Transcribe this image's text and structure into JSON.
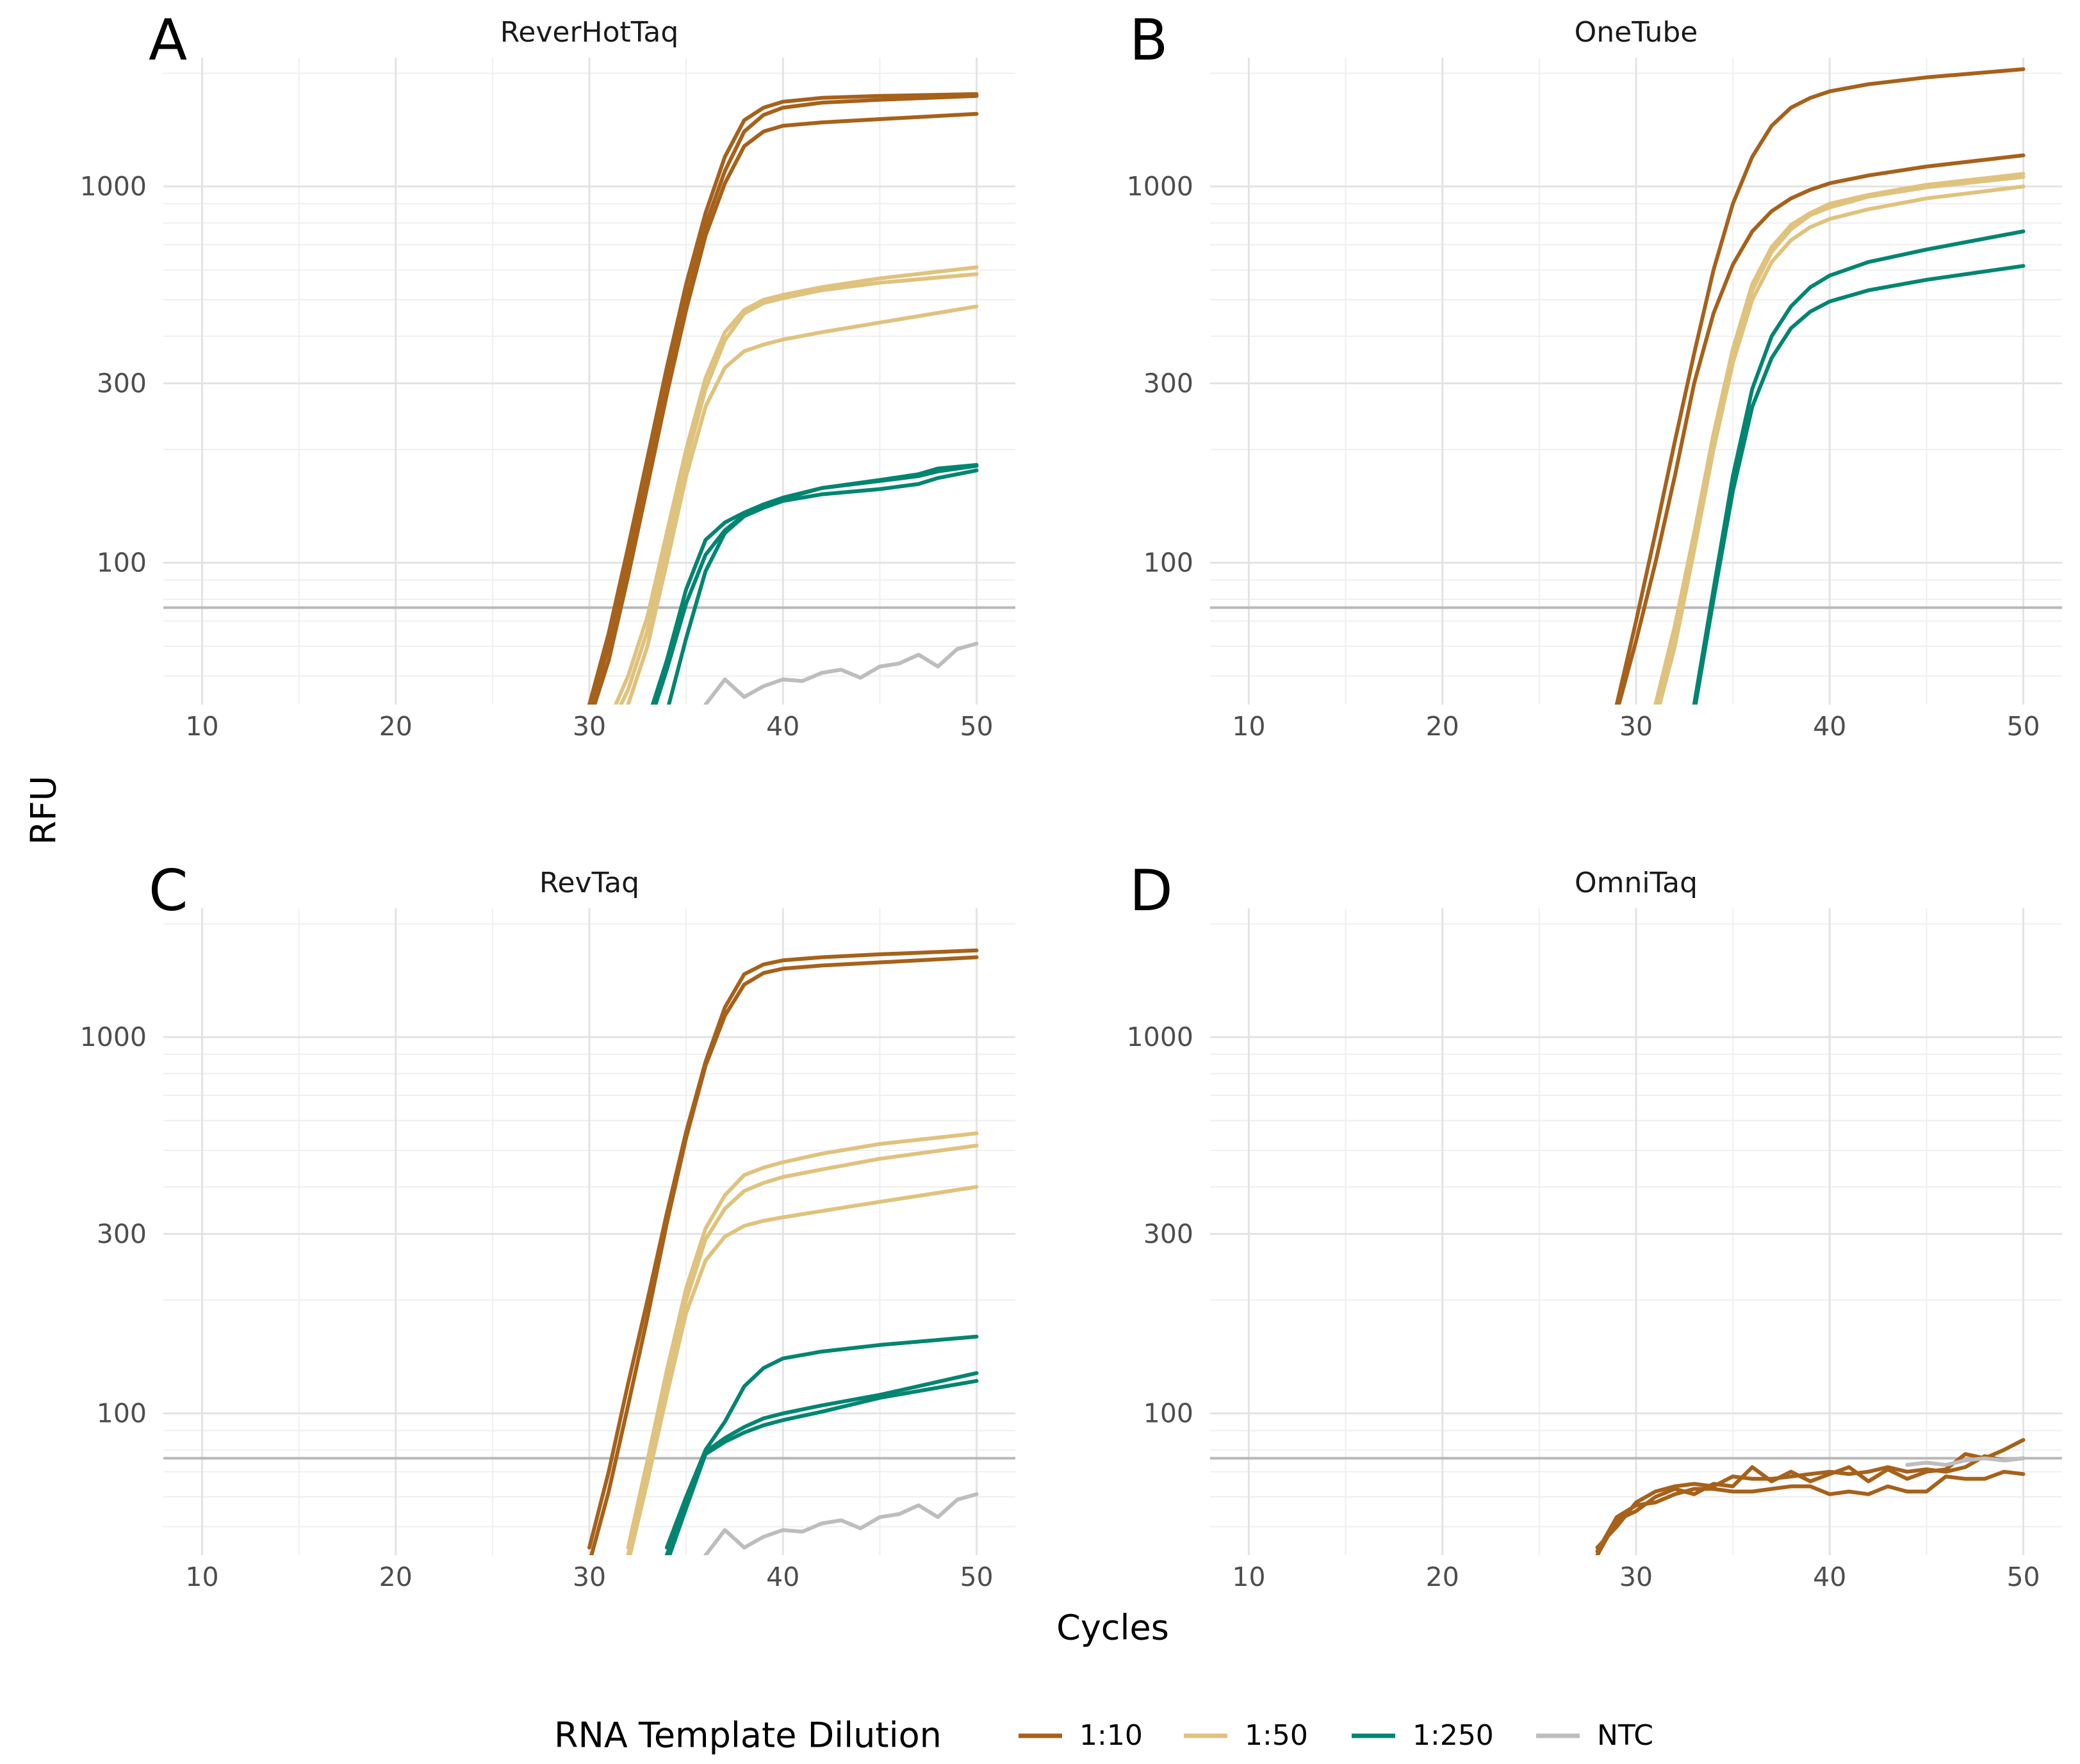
{
  "figure": {
    "y_axis_label": "RFU",
    "x_axis_label": "Cycles",
    "x_ticks": [
      10,
      20,
      30,
      40,
      50
    ],
    "y_ticks": [
      100,
      300,
      1000
    ],
    "y_tick_labels": [
      "100",
      "300",
      "1000"
    ],
    "threshold": 76,
    "legend": {
      "title": "RNA Template Dilution",
      "entries": [
        {
          "label": "1:10",
          "color": "#A6611A"
        },
        {
          "label": "1:50",
          "color": "#DFC27D"
        },
        {
          "label": "1:250",
          "color": "#018571"
        },
        {
          "label": "NTC",
          "color": "#BDBDBD"
        }
      ]
    }
  },
  "chart_data": [
    {
      "type": "line",
      "tag": "A",
      "title": "ReverHotTaq",
      "xlabel": "Cycles",
      "ylabel": "RFU",
      "yscale": "log10",
      "xlim": [
        8,
        52
      ],
      "ylim": [
        42,
        2200
      ],
      "threshold": 76,
      "series": [
        {
          "name": "1:10",
          "x": [
            30,
            31,
            32,
            33,
            34,
            35,
            36,
            37,
            38,
            39,
            40,
            42,
            45,
            50
          ],
          "y": [
            42,
            65,
            110,
            190,
            330,
            550,
            850,
            1200,
            1500,
            1620,
            1680,
            1720,
            1740,
            1760
          ]
        },
        {
          "name": "1:10",
          "x": [
            30,
            31,
            32,
            33,
            34,
            35,
            36,
            37,
            38,
            39,
            40,
            42,
            45,
            50
          ],
          "y": [
            40,
            60,
            100,
            170,
            300,
            500,
            790,
            1100,
            1400,
            1550,
            1620,
            1670,
            1700,
            1740
          ]
        },
        {
          "name": "1:10",
          "x": [
            30,
            31,
            32,
            33,
            34,
            35,
            36,
            37,
            38,
            39,
            40,
            42,
            45,
            50
          ],
          "y": [
            38,
            55,
            92,
            160,
            280,
            470,
            740,
            1020,
            1280,
            1400,
            1450,
            1480,
            1510,
            1560
          ]
        },
        {
          "name": "1:50",
          "x": [
            31,
            32,
            33,
            34,
            35,
            36,
            37,
            38,
            39,
            40,
            42,
            45,
            50
          ],
          "y": [
            38,
            50,
            72,
            120,
            200,
            310,
            410,
            470,
            500,
            515,
            540,
            570,
            610
          ]
        },
        {
          "name": "1:50",
          "x": [
            31,
            32,
            33,
            34,
            35,
            36,
            37,
            38,
            39,
            40,
            42,
            45,
            50
          ],
          "y": [
            36,
            46,
            66,
            110,
            185,
            290,
            390,
            460,
            490,
            505,
            530,
            555,
            585
          ]
        },
        {
          "name": "1:50",
          "x": [
            32,
            33,
            34,
            35,
            36,
            37,
            38,
            39,
            40,
            42,
            45,
            50
          ],
          "y": [
            42,
            60,
            100,
            170,
            260,
            330,
            365,
            380,
            392,
            410,
            435,
            480
          ]
        },
        {
          "name": "1:250",
          "x": [
            33,
            34,
            35,
            36,
            37,
            38,
            39,
            40,
            42,
            45,
            47,
            48,
            50
          ],
          "y": [
            38,
            55,
            85,
            115,
            128,
            136,
            143,
            149,
            158,
            166,
            172,
            178,
            182
          ]
        },
        {
          "name": "1:250",
          "x": [
            33,
            34,
            35,
            36,
            37,
            38,
            39,
            40,
            42,
            45,
            47,
            48,
            50
          ],
          "y": [
            36,
            52,
            78,
            105,
            122,
            134,
            142,
            148,
            158,
            165,
            170,
            175,
            181
          ]
        },
        {
          "name": "1:250",
          "x": [
            34,
            35,
            36,
            37,
            38,
            39,
            40,
            42,
            45,
            47,
            48,
            50
          ],
          "y": [
            40,
            63,
            95,
            120,
            133,
            140,
            146,
            152,
            157,
            162,
            168,
            176
          ]
        },
        {
          "name": "NTC",
          "x": [
            36,
            37,
            38,
            39,
            40,
            41,
            42,
            43,
            44,
            45,
            46,
            47,
            48,
            49,
            50
          ],
          "y": [
            42,
            49,
            44,
            47,
            49,
            48.5,
            51,
            52,
            49.5,
            53,
            54,
            57,
            53,
            59,
            61
          ]
        }
      ]
    },
    {
      "type": "line",
      "tag": "B",
      "title": "OneTube",
      "xlabel": "Cycles",
      "ylabel": "RFU",
      "yscale": "log10",
      "xlim": [
        8,
        52
      ],
      "ylim": [
        42,
        2200
      ],
      "threshold": 76,
      "series": [
        {
          "name": "1:10",
          "x": [
            29,
            30,
            31,
            32,
            33,
            34,
            35,
            36,
            37,
            38,
            39,
            40,
            42,
            45,
            50
          ],
          "y": [
            42,
            70,
            120,
            210,
            360,
            600,
            900,
            1200,
            1450,
            1620,
            1720,
            1790,
            1870,
            1950,
            2050
          ]
        },
        {
          "name": "1:10",
          "x": [
            29,
            30,
            31,
            32,
            33,
            34,
            35,
            36,
            37,
            38,
            39,
            40,
            42,
            45,
            50
          ],
          "y": [
            40,
            62,
            100,
            170,
            300,
            460,
            620,
            760,
            860,
            930,
            980,
            1020,
            1070,
            1130,
            1210
          ]
        },
        {
          "name": "1:50",
          "x": [
            31,
            32,
            33,
            34,
            35,
            36,
            37,
            38,
            39,
            40,
            42,
            45,
            50
          ],
          "y": [
            42,
            68,
            120,
            220,
            370,
            550,
            690,
            790,
            850,
            900,
            950,
            1010,
            1080
          ]
        },
        {
          "name": "1:50",
          "x": [
            31,
            32,
            33,
            34,
            35,
            36,
            37,
            38,
            39,
            40,
            42,
            45,
            50
          ],
          "y": [
            40,
            65,
            115,
            210,
            360,
            530,
            670,
            770,
            840,
            880,
            940,
            995,
            1060
          ]
        },
        {
          "name": "1:50",
          "x": [
            31,
            32,
            33,
            34,
            35,
            36,
            37,
            38,
            39,
            40,
            42,
            45,
            50
          ],
          "y": [
            38,
            60,
            108,
            200,
            340,
            500,
            630,
            720,
            780,
            820,
            870,
            930,
            1000
          ]
        },
        {
          "name": "1:250",
          "x": [
            33,
            34,
            35,
            36,
            37,
            38,
            39,
            40,
            42,
            45,
            50
          ],
          "y": [
            42,
            85,
            170,
            290,
            400,
            480,
            540,
            580,
            630,
            680,
            760
          ]
        },
        {
          "name": "1:250",
          "x": [
            33,
            34,
            35,
            36,
            37,
            38,
            39,
            40,
            42,
            45,
            50
          ],
          "y": [
            40,
            80,
            155,
            260,
            350,
            420,
            465,
            495,
            530,
            565,
            615
          ]
        }
      ]
    },
    {
      "type": "line",
      "tag": "C",
      "title": "RevTaq",
      "xlabel": "Cycles",
      "ylabel": "RFU",
      "yscale": "log10",
      "xlim": [
        8,
        52
      ],
      "ylim": [
        42,
        2200
      ],
      "threshold": 76,
      "series": [
        {
          "name": "1:10",
          "x": [
            30,
            31,
            32,
            33,
            34,
            35,
            36,
            37,
            38,
            39,
            40,
            42,
            45,
            50
          ],
          "y": [
            44,
            70,
            120,
            200,
            340,
            560,
            860,
            1200,
            1470,
            1560,
            1600,
            1630,
            1660,
            1700
          ]
        },
        {
          "name": "1:10",
          "x": [
            30,
            31,
            32,
            33,
            34,
            35,
            36,
            37,
            38,
            39,
            40,
            42,
            45,
            50
          ],
          "y": [
            40,
            62,
            105,
            180,
            320,
            540,
            840,
            1140,
            1380,
            1480,
            1520,
            1550,
            1580,
            1630
          ]
        },
        {
          "name": "1:50",
          "x": [
            32,
            33,
            34,
            35,
            36,
            37,
            38,
            39,
            40,
            42,
            45,
            50
          ],
          "y": [
            44,
            75,
            130,
            215,
            310,
            380,
            430,
            450,
            465,
            490,
            520,
            555
          ]
        },
        {
          "name": "1:50",
          "x": [
            32,
            33,
            34,
            35,
            36,
            37,
            38,
            39,
            40,
            42,
            45,
            50
          ],
          "y": [
            42,
            70,
            120,
            200,
            290,
            350,
            390,
            410,
            425,
            445,
            475,
            515
          ]
        },
        {
          "name": "1:50",
          "x": [
            32,
            33,
            34,
            35,
            36,
            37,
            38,
            39,
            40,
            42,
            45,
            50
          ],
          "y": [
            40,
            66,
            112,
            185,
            255,
            295,
            315,
            325,
            332,
            345,
            365,
            400
          ]
        },
        {
          "name": "1:250",
          "x": [
            34,
            35,
            36,
            37,
            38,
            39,
            40,
            42,
            45,
            50
          ],
          "y": [
            44,
            60,
            80,
            95,
            118,
            132,
            140,
            146,
            152,
            160
          ]
        },
        {
          "name": "1:250",
          "x": [
            34,
            35,
            36,
            37,
            38,
            39,
            40,
            42,
            45,
            50
          ],
          "y": [
            42,
            58,
            79,
            86,
            92,
            97,
            100,
            105,
            112,
            128
          ]
        },
        {
          "name": "1:250",
          "x": [
            34,
            35,
            36,
            37,
            38,
            39,
            40,
            42,
            45,
            50
          ],
          "y": [
            40,
            56,
            78,
            84,
            89,
            93,
            96,
            101,
            110,
            122
          ]
        },
        {
          "name": "NTC",
          "x": [
            36,
            37,
            38,
            39,
            40,
            41,
            42,
            43,
            44,
            45,
            46,
            47,
            48,
            49,
            50
          ],
          "y": [
            42,
            49,
            44,
            47,
            49,
            48.5,
            51,
            52,
            49.5,
            53,
            54,
            57,
            53,
            59,
            61
          ]
        }
      ]
    },
    {
      "type": "line",
      "tag": "D",
      "title": "OmniTaq",
      "xlabel": "Cycles",
      "ylabel": "RFU",
      "yscale": "log10",
      "xlim": [
        8,
        52
      ],
      "ylim": [
        42,
        2200
      ],
      "threshold": 76,
      "series": [
        {
          "name": "1:10",
          "x": [
            28,
            29,
            30,
            31,
            32,
            33,
            34,
            35,
            36,
            37,
            38,
            39,
            40,
            41,
            42,
            43,
            44,
            45,
            46,
            47,
            48,
            49,
            50
          ],
          "y": [
            42,
            52,
            55,
            60,
            63,
            61,
            65,
            64,
            72,
            66,
            70,
            66,
            69,
            72,
            66,
            71,
            67,
            70,
            71,
            78,
            76,
            80,
            85
          ]
        },
        {
          "name": "1:10",
          "x": [
            28,
            29,
            30,
            31,
            32,
            33,
            34,
            35,
            36,
            37,
            38,
            39,
            40,
            41,
            42,
            43,
            44,
            45,
            46,
            47,
            48,
            49,
            50
          ],
          "y": [
            44,
            50,
            58,
            62,
            64,
            65,
            64,
            68,
            67,
            67,
            68,
            69,
            70,
            69,
            70,
            72,
            70,
            71,
            70,
            72,
            77,
            75,
            76
          ]
        },
        {
          "name": "1:10",
          "x": [
            28,
            29,
            30,
            31,
            32,
            33,
            34,
            35,
            36,
            37,
            38,
            39,
            40,
            41,
            42,
            43,
            44,
            45,
            46,
            47,
            48,
            49,
            50
          ],
          "y": [
            43,
            53,
            57,
            58,
            61,
            63,
            63,
            62,
            62,
            63,
            64,
            64,
            61,
            62,
            61,
            64,
            62,
            62,
            68,
            67,
            67,
            70,
            69
          ]
        },
        {
          "name": "NTC",
          "x": [
            44,
            45,
            46,
            47,
            48,
            49,
            50
          ],
          "y": [
            73,
            74,
            73,
            75,
            76,
            75,
            76
          ]
        }
      ]
    }
  ]
}
